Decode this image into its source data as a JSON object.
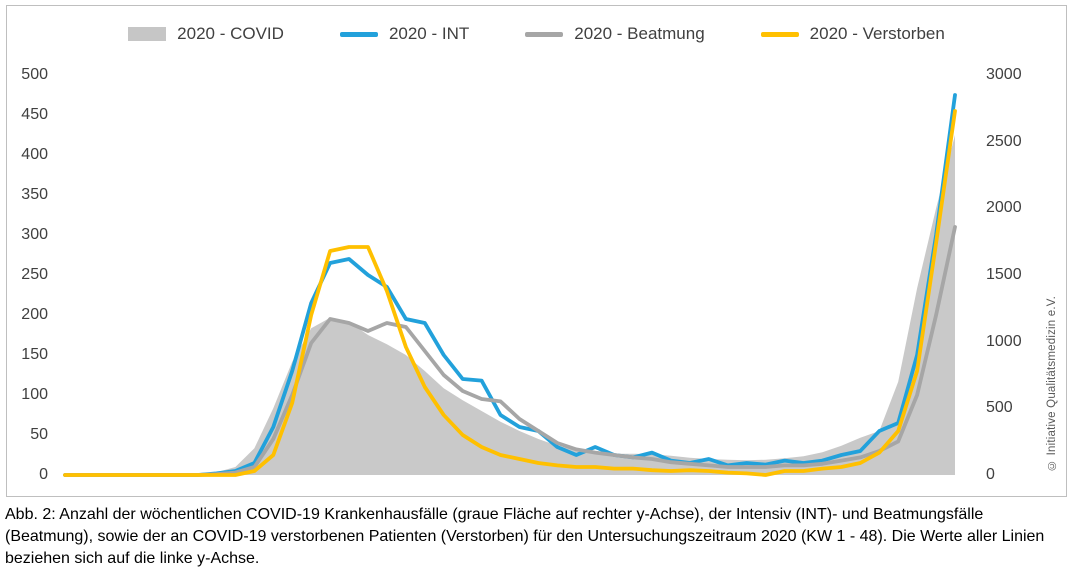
{
  "legend": {
    "items": [
      {
        "id": "covid",
        "label": "2020 - COVID",
        "type": "area",
        "color": "#c6c6c6"
      },
      {
        "id": "int",
        "label": "2020 - INT",
        "type": "line",
        "color": "#22a1db"
      },
      {
        "id": "beatmung",
        "label": "2020 - Beatmung",
        "type": "line",
        "color": "#a6a6a6"
      },
      {
        "id": "verstorben",
        "label": "2020 - Verstorben",
        "type": "line",
        "color": "#ffc000"
      }
    ]
  },
  "chart_data": {
    "type": "line",
    "title": "",
    "x": {
      "unit": "Kalenderwoche",
      "start_week": 1,
      "end_week": 48,
      "tick_labels_visible": false
    },
    "left_axis": {
      "min": 0,
      "max": 500,
      "ticks": [
        0,
        50,
        100,
        150,
        200,
        250,
        300,
        350,
        400,
        450,
        500
      ]
    },
    "right_axis": {
      "min": 0,
      "max": 3000,
      "ticks": [
        0,
        500,
        1000,
        1500,
        2000,
        2500,
        3000
      ]
    },
    "grid": false,
    "legend_position": "top",
    "series": [
      {
        "id": "covid",
        "name": "2020 - COVID",
        "type": "area",
        "axis": "right",
        "color": "#c9c9c9",
        "values": [
          0,
          0,
          0,
          0,
          0,
          0,
          0,
          0,
          20,
          60,
          200,
          500,
          850,
          1100,
          1180,
          1150,
          1050,
          980,
          900,
          780,
          650,
          560,
          480,
          400,
          330,
          270,
          220,
          190,
          170,
          160,
          160,
          155,
          145,
          130,
          120,
          115,
          110,
          115,
          125,
          140,
          170,
          220,
          280,
          330,
          700,
          1400,
          2000,
          2550
        ]
      },
      {
        "id": "int",
        "name": "2020 - INT",
        "type": "line",
        "axis": "left",
        "color": "#22a1db",
        "values": [
          0,
          0,
          0,
          0,
          0,
          0,
          0,
          0,
          2,
          5,
          15,
          60,
          130,
          215,
          265,
          270,
          250,
          235,
          195,
          190,
          150,
          120,
          118,
          75,
          60,
          55,
          35,
          25,
          35,
          25,
          22,
          28,
          18,
          15,
          20,
          12,
          15,
          13,
          18,
          15,
          18,
          25,
          30,
          55,
          65,
          150,
          300,
          475
        ]
      },
      {
        "id": "beatmung",
        "name": "2020 - Beatmung",
        "type": "line",
        "axis": "left",
        "color": "#a6a6a6",
        "values": [
          0,
          0,
          0,
          0,
          0,
          0,
          0,
          0,
          1,
          3,
          10,
          45,
          100,
          165,
          195,
          190,
          180,
          190,
          185,
          155,
          125,
          105,
          95,
          92,
          70,
          55,
          40,
          32,
          28,
          25,
          22,
          20,
          16,
          14,
          12,
          10,
          10,
          10,
          12,
          12,
          14,
          18,
          22,
          30,
          42,
          100,
          200,
          310
        ]
      },
      {
        "id": "verstorben",
        "name": "2020 - Verstorben",
        "type": "line",
        "axis": "left",
        "color": "#ffc000",
        "values": [
          0,
          0,
          0,
          0,
          0,
          0,
          0,
          0,
          0,
          0,
          5,
          25,
          90,
          200,
          280,
          285,
          285,
          230,
          160,
          110,
          75,
          50,
          35,
          25,
          20,
          15,
          12,
          10,
          10,
          8,
          8,
          6,
          5,
          6,
          5,
          3,
          2,
          0,
          5,
          5,
          8,
          10,
          15,
          28,
          55,
          130,
          290,
          455
        ]
      }
    ]
  },
  "caption": {
    "text": "Abb. 2: Anzahl der wöchentlichen COVID-19 Krankenhausfälle (graue Fläche auf rechter y-Achse), der Intensiv (INT)- und Beatmungsfälle (Beatmung), sowie der an COVID-19 verstorbenen Patienten (Verstorben) für den Untersuchungszeitraum 2020 (KW 1 - 48). Die Werte aller Linien beziehen sich auf die linke y-Achse."
  },
  "watermark": {
    "text": "© Initiative Qualitätsmedizin e.V."
  }
}
